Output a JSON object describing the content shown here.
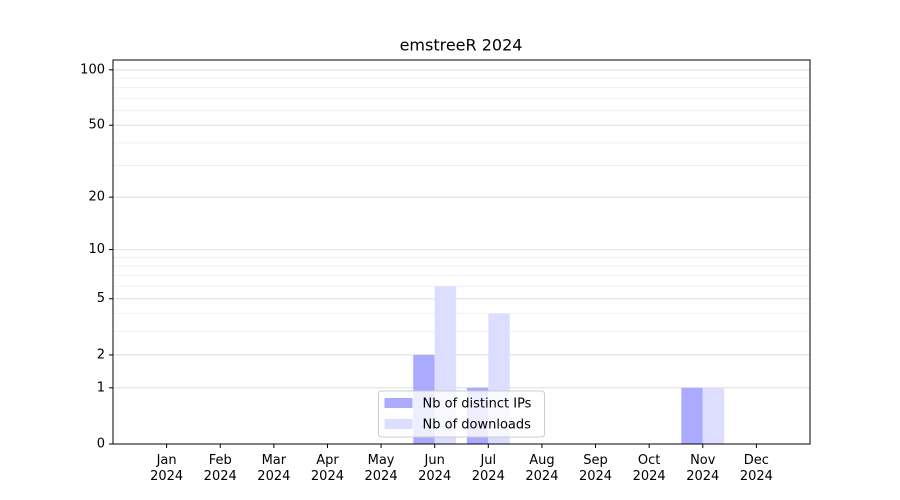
{
  "chart_data": {
    "type": "bar",
    "title": "emstreeR 2024",
    "categories": [
      "Jan\n2024",
      "Feb\n2024",
      "Mar\n2024",
      "Apr\n2024",
      "May\n2024",
      "Jun\n2024",
      "Jul\n2024",
      "Aug\n2024",
      "Sep\n2024",
      "Oct\n2024",
      "Nov\n2024",
      "Dec\n2024"
    ],
    "series": [
      {
        "name": "Nb of distinct IPs",
        "color": "#aaaaff",
        "values": [
          0,
          0,
          0,
          0,
          0,
          2,
          1,
          0,
          0,
          0,
          1,
          0
        ]
      },
      {
        "name": "Nb of downloads",
        "color": "#ddddff",
        "values": [
          0,
          0,
          0,
          0,
          0,
          6,
          4,
          0,
          0,
          0,
          1,
          0
        ]
      }
    ],
    "yscale": "log1p",
    "ylim": [
      0,
      113
    ],
    "yticks": [
      0,
      1,
      2,
      5,
      10,
      20,
      50,
      100
    ],
    "yminorticks": [
      3,
      4,
      6,
      7,
      8,
      9,
      30,
      40,
      60,
      70,
      80,
      90
    ],
    "grid": true,
    "legend": "lower center"
  }
}
